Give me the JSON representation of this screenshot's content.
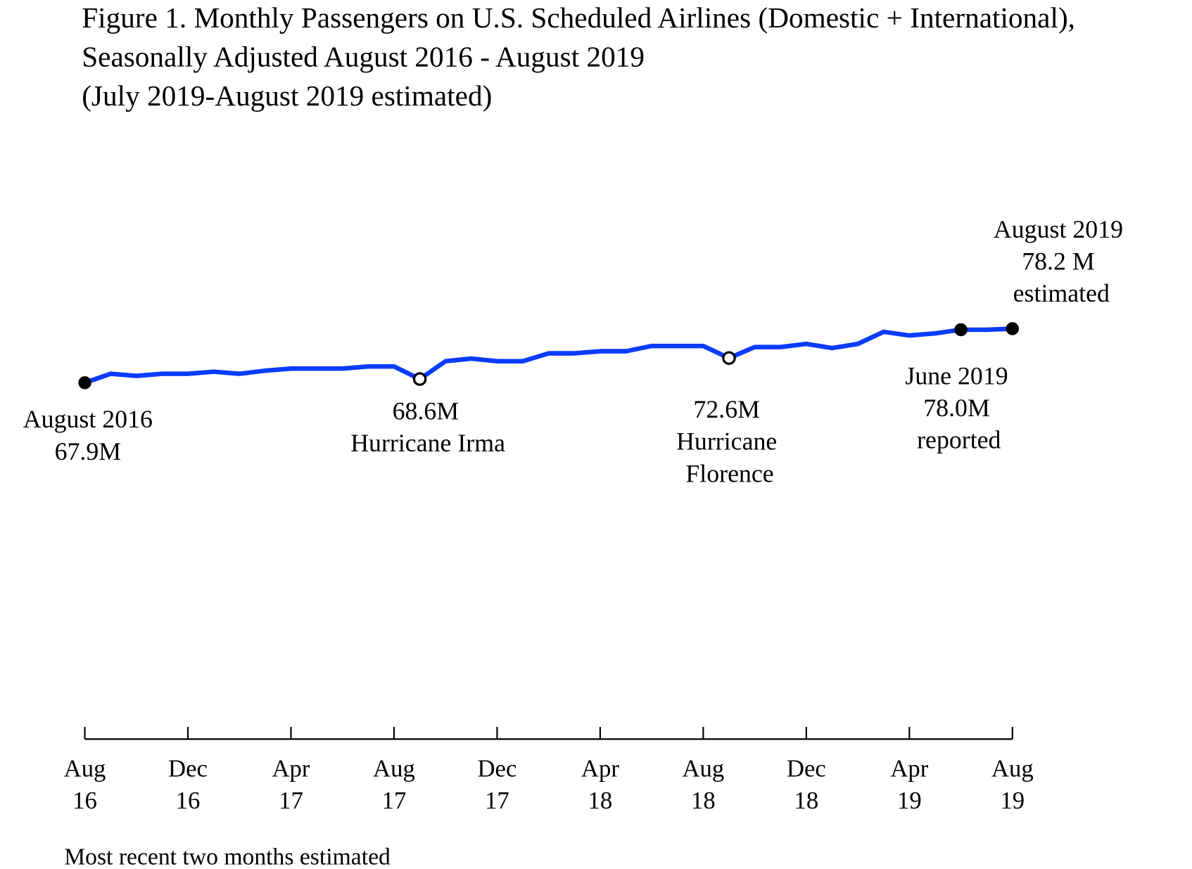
{
  "chart_data": {
    "type": "line",
    "title": [
      "Figure 1. Monthly Passengers on U.S. Scheduled Airlines (Domestic + International),",
      "Seasonally Adjusted August 2016 - August 2019",
      "(July 2019-August 2019 estimated)"
    ],
    "xlabel": "",
    "ylabel": "",
    "ylim": [
      0,
      80
    ],
    "grid": false,
    "y_axis_visible": false,
    "line_color": "#0a3cff",
    "x": [
      "Aug 2016",
      "Sep 2016",
      "Oct 2016",
      "Nov 2016",
      "Dec 2016",
      "Jan 2017",
      "Feb 2017",
      "Mar 2017",
      "Apr 2017",
      "May 2017",
      "Jun 2017",
      "Jul 2017",
      "Aug 2017",
      "Sep 2017",
      "Oct 2017",
      "Nov 2017",
      "Dec 2017",
      "Jan 2018",
      "Feb 2018",
      "Mar 2018",
      "Apr 2018",
      "May 2018",
      "Jun 2018",
      "Jul 2018",
      "Aug 2018",
      "Sep 2018",
      "Oct 2018",
      "Nov 2018",
      "Dec 2018",
      "Jan 2019",
      "Feb 2019",
      "Mar 2019",
      "Apr 2019",
      "May 2019",
      "Jun 2019",
      "Jul 2019",
      "Aug 2019"
    ],
    "values": [
      67.9,
      69.6,
      69.2,
      69.6,
      69.6,
      70.0,
      69.6,
      70.2,
      70.6,
      70.6,
      70.6,
      71.0,
      71.0,
      68.6,
      72.0,
      72.5,
      72.0,
      72.0,
      73.5,
      73.5,
      73.9,
      73.9,
      74.9,
      74.9,
      74.9,
      72.6,
      74.7,
      74.7,
      75.3,
      74.5,
      75.3,
      77.6,
      76.9,
      77.3,
      78.0,
      78.0,
      78.2
    ],
    "x_ticks": [
      {
        "month": "Aug",
        "year": "16",
        "index": 0
      },
      {
        "month": "Dec",
        "year": "16",
        "index": 4
      },
      {
        "month": "Apr",
        "year": "17",
        "index": 8
      },
      {
        "month": "Aug",
        "year": "17",
        "index": 12
      },
      {
        "month": "Dec",
        "year": "17",
        "index": 16
      },
      {
        "month": "Apr",
        "year": "18",
        "index": 20
      },
      {
        "month": "Aug",
        "year": "18",
        "index": 24
      },
      {
        "month": "Dec",
        "year": "18",
        "index": 28
      },
      {
        "month": "Apr",
        "year": "19",
        "index": 32
      },
      {
        "month": "Aug",
        "year": "19",
        "index": 36
      }
    ],
    "markers": [
      {
        "index": 0,
        "style": "filled"
      },
      {
        "index": 13,
        "style": "open"
      },
      {
        "index": 25,
        "style": "open"
      },
      {
        "index": 34,
        "style": "filled"
      },
      {
        "index": 36,
        "style": "filled"
      }
    ],
    "annotations": {
      "start": [
        "August 2016",
        "67.9M"
      ],
      "irma": [
        "68.6M",
        "Hurricane Irma"
      ],
      "florence": [
        "72.6M",
        "Hurricane",
        "Florence"
      ],
      "june": [
        "June 2019",
        "78.0M",
        "reported"
      ],
      "end": [
        "August 2019",
        "78.2 M",
        "estimated"
      ]
    },
    "footnote": "Most recent two months estimated"
  }
}
